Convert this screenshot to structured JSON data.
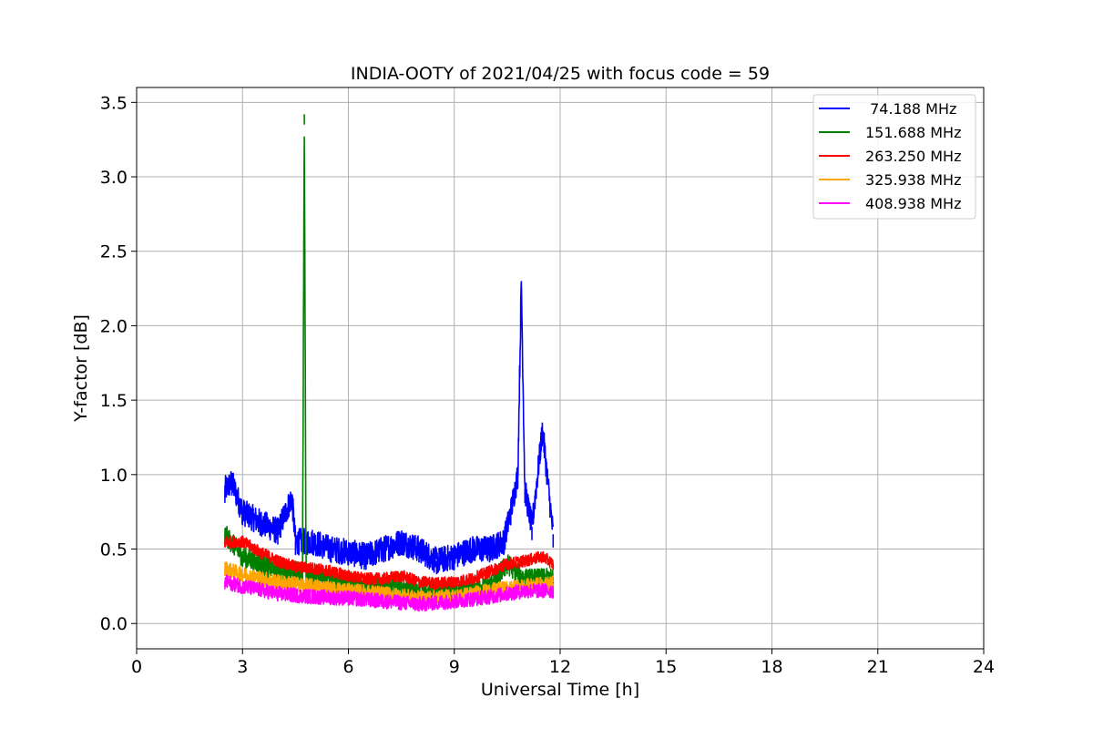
{
  "chart_data": {
    "type": "line",
    "title": "INDIA-OOTY of 2021/04/25 with focus code = 59",
    "xlabel": "Universal Time [h]",
    "ylabel": "Y-factor [dB]",
    "xlim": [
      0,
      24
    ],
    "ylim": [
      -0.17,
      3.6
    ],
    "xticks": [
      0,
      3,
      6,
      9,
      12,
      15,
      18,
      21,
      24
    ],
    "xtick_labels": [
      "0",
      "3",
      "6",
      "9",
      "12",
      "15",
      "18",
      "21",
      "24"
    ],
    "yticks": [
      0.0,
      0.5,
      1.0,
      1.5,
      2.0,
      2.5,
      3.0,
      3.5
    ],
    "ytick_labels": [
      "0.0",
      "0.5",
      "1.0",
      "1.5",
      "2.0",
      "2.5",
      "3.0",
      "3.5"
    ],
    "grid": true,
    "legend_position": "top-right",
    "series": [
      {
        "name": " 74.188 MHz",
        "color": "#0000ff",
        "x": [
          2.5,
          2.7,
          3.0,
          3.5,
          4.0,
          4.4,
          4.5,
          5.0,
          5.5,
          6.0,
          6.5,
          7.0,
          7.5,
          8.0,
          8.5,
          9.0,
          9.5,
          10.0,
          10.4,
          10.6,
          10.8,
          10.9,
          11.0,
          11.2,
          11.5,
          11.8
        ],
        "y": [
          0.9,
          0.95,
          0.75,
          0.68,
          0.62,
          0.85,
          0.55,
          0.55,
          0.5,
          0.48,
          0.45,
          0.5,
          0.55,
          0.5,
          0.42,
          0.45,
          0.5,
          0.5,
          0.55,
          0.75,
          1.0,
          2.3,
          0.9,
          0.65,
          1.3,
          0.6
        ],
        "noise": 0.09
      },
      {
        "name": "151.688 MHz",
        "color": "#008000",
        "x": [
          2.5,
          3.0,
          3.5,
          4.0,
          4.5,
          4.7,
          4.75,
          4.8,
          5.0,
          6.0,
          7.0,
          8.0,
          9.0,
          10.0,
          10.5,
          11.0,
          11.8
        ],
        "y": [
          0.6,
          0.45,
          0.4,
          0.35,
          0.35,
          0.35,
          3.42,
          0.35,
          0.33,
          0.28,
          0.25,
          0.2,
          0.2,
          0.25,
          0.4,
          0.3,
          0.3
        ],
        "noise": 0.07
      },
      {
        "name": "263.250 MHz",
        "color": "#ff0000",
        "x": [
          2.5,
          3.0,
          3.5,
          4.0,
          4.5,
          5.0,
          5.5,
          6.0,
          6.5,
          7.0,
          7.5,
          8.0,
          8.5,
          9.0,
          9.5,
          10.0,
          10.5,
          11.0,
          11.5,
          11.8
        ],
        "y": [
          0.55,
          0.55,
          0.48,
          0.42,
          0.38,
          0.37,
          0.35,
          0.32,
          0.3,
          0.3,
          0.32,
          0.28,
          0.27,
          0.28,
          0.3,
          0.35,
          0.4,
          0.42,
          0.45,
          0.4
        ],
        "noise": 0.04
      },
      {
        "name": "325.938 MHz",
        "color": "#ffa500",
        "x": [
          2.5,
          3.0,
          4.0,
          5.0,
          6.0,
          7.0,
          8.0,
          9.0,
          10.0,
          11.0,
          11.8
        ],
        "y": [
          0.37,
          0.33,
          0.28,
          0.25,
          0.22,
          0.2,
          0.17,
          0.18,
          0.22,
          0.25,
          0.27
        ],
        "noise": 0.05
      },
      {
        "name": "408.938 MHz",
        "color": "#ff00ff",
        "x": [
          2.5,
          3.0,
          4.0,
          5.0,
          6.0,
          7.0,
          8.0,
          9.0,
          10.0,
          11.0,
          11.8
        ],
        "y": [
          0.28,
          0.25,
          0.2,
          0.18,
          0.17,
          0.15,
          0.13,
          0.15,
          0.18,
          0.22,
          0.22
        ],
        "noise": 0.05
      }
    ]
  }
}
